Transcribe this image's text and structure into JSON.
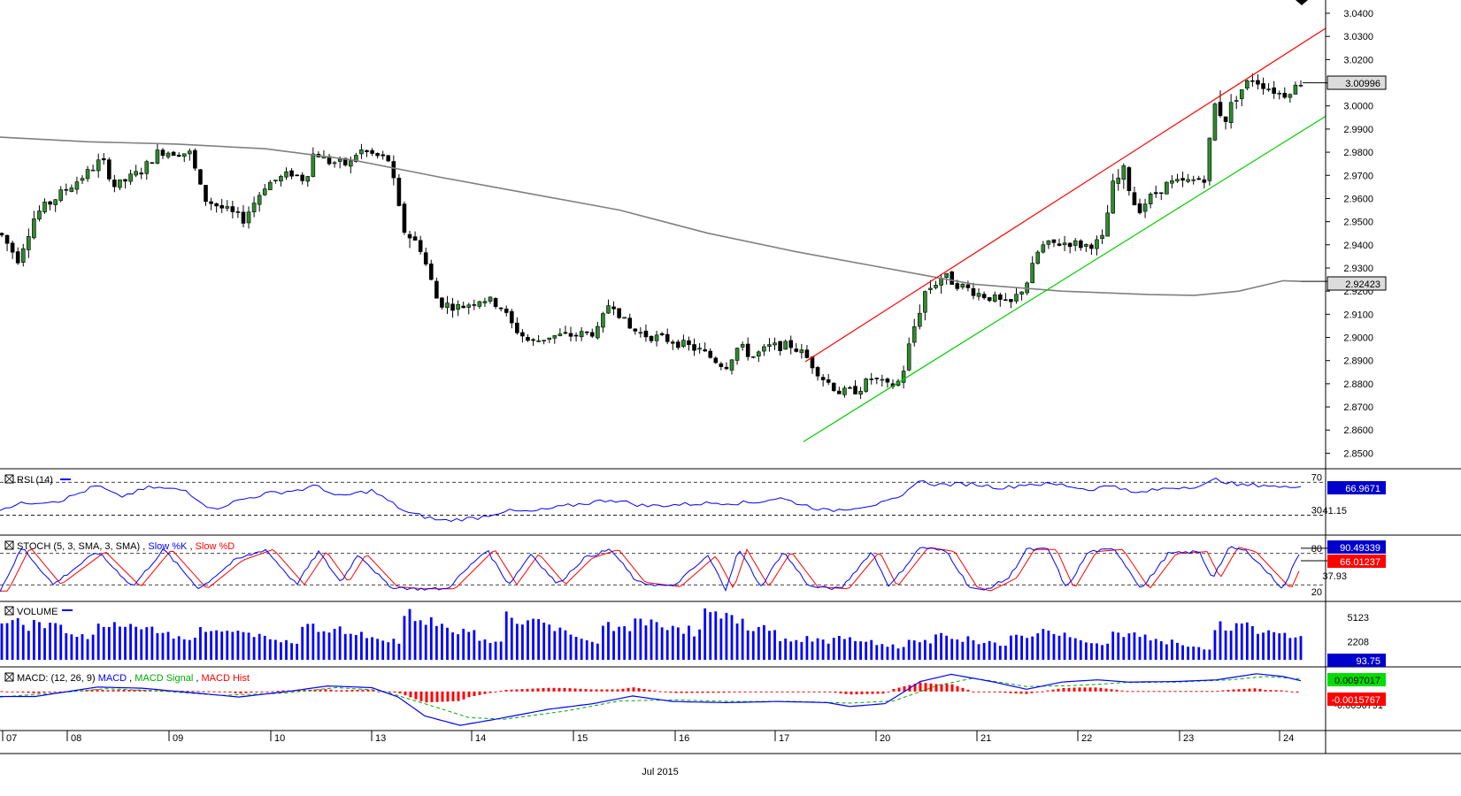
{
  "colors": {
    "bull": "#2e8b2e",
    "bear": "#000000",
    "ma": "#808080",
    "upper_channel": "#ff0000",
    "lower_channel": "#00cc00",
    "rsi": "#0000ff",
    "stoch_k": "#0000ff",
    "stoch_d": "#ff0000",
    "volume": "#0000ff",
    "macd": "#0000ff",
    "macd_signal": "#00aa00",
    "macd_hist": "#ff0000",
    "axis_text": "#000000"
  },
  "chart_data": {
    "type": "candlestick",
    "main": {
      "y_ticks": [
        "3.0400",
        "3.0300",
        "3.0200",
        "3.0100",
        "3.0000",
        "2.9900",
        "2.9800",
        "2.9700",
        "2.9600",
        "2.9500",
        "2.9400",
        "2.9300",
        "2.9200",
        "2.9100",
        "2.9000",
        "2.8900",
        "2.8800",
        "2.8700",
        "2.8600",
        "2.8500"
      ],
      "ylim": [
        2.845,
        3.0435
      ],
      "last_price": "3.00996",
      "ma_value": "2.92423",
      "moving_average": [
        [
          0,
          2.9865
        ],
        [
          100,
          2.9845
        ],
        [
          200,
          2.9835
        ],
        [
          300,
          2.9815
        ],
        [
          400,
          2.9765
        ],
        [
          500,
          2.969
        ],
        [
          600,
          2.962
        ],
        [
          700,
          2.955
        ],
        [
          800,
          2.945
        ],
        [
          900,
          2.937
        ],
        [
          1000,
          2.93
        ],
        [
          1100,
          2.923
        ],
        [
          1200,
          2.92
        ],
        [
          1300,
          2.9185
        ],
        [
          1350,
          2.9182
        ],
        [
          1400,
          2.92
        ],
        [
          1450,
          2.9245
        ],
        [
          1470,
          2.92423
        ]
      ],
      "upper_channel": [
        [
          910,
          2.8895
        ],
        [
          1498,
          3.0335
        ]
      ],
      "lower_channel": [
        [
          908,
          2.855
        ],
        [
          1498,
          2.9955
        ]
      ],
      "candle_count": 243,
      "close_path": [
        [
          0,
          2.945
        ],
        [
          20,
          2.934
        ],
        [
          40,
          2.953
        ],
        [
          70,
          2.9625
        ],
        [
          100,
          2.9715
        ],
        [
          115,
          2.977
        ],
        [
          130,
          2.965
        ],
        [
          160,
          2.972
        ],
        [
          180,
          2.9805
        ],
        [
          215,
          2.9795
        ],
        [
          230,
          2.96
        ],
        [
          250,
          2.956
        ],
        [
          275,
          2.951
        ],
        [
          300,
          2.966
        ],
        [
          330,
          2.971
        ],
        [
          345,
          2.968
        ],
        [
          355,
          2.9805
        ],
        [
          370,
          2.976
        ],
        [
          395,
          2.9745
        ],
        [
          405,
          2.981
        ],
        [
          440,
          2.9765
        ],
        [
          455,
          2.947
        ],
        [
          475,
          2.939
        ],
        [
          495,
          2.915
        ],
        [
          520,
          2.913
        ],
        [
          545,
          2.917
        ],
        [
          565,
          2.914
        ],
        [
          580,
          2.9045
        ],
        [
          600,
          2.8975
        ],
        [
          620,
          2.9005
        ],
        [
          650,
          2.901
        ],
        [
          675,
          2.9025
        ],
        [
          690,
          2.9165
        ],
        [
          710,
          2.904
        ],
        [
          730,
          2.901
        ],
        [
          760,
          2.8985
        ],
        [
          790,
          2.8945
        ],
        [
          820,
          2.8875
        ],
        [
          835,
          2.8965
        ],
        [
          850,
          2.8915
        ],
        [
          870,
          2.896
        ],
        [
          895,
          2.8965
        ],
        [
          910,
          2.892
        ],
        [
          930,
          2.8825
        ],
        [
          950,
          2.876
        ],
        [
          970,
          2.8775
        ],
        [
          985,
          2.8825
        ],
        [
          1005,
          2.8785
        ],
        [
          1018,
          2.8815
        ],
        [
          1030,
          2.9005
        ],
        [
          1045,
          2.9195
        ],
        [
          1065,
          2.9265
        ],
        [
          1085,
          2.9225
        ],
        [
          1105,
          2.919
        ],
        [
          1125,
          2.9165
        ],
        [
          1140,
          2.9135
        ],
        [
          1160,
          2.9235
        ],
        [
          1175,
          2.939
        ],
        [
          1190,
          2.9405
        ],
        [
          1210,
          2.941
        ],
        [
          1225,
          2.9395
        ],
        [
          1245,
          2.9415
        ],
        [
          1258,
          2.9655
        ],
        [
          1270,
          2.9715
        ],
        [
          1285,
          2.9545
        ],
        [
          1300,
          2.9605
        ],
        [
          1320,
          2.9665
        ],
        [
          1340,
          2.967
        ],
        [
          1362,
          2.969
        ],
        [
          1372,
          3.0005
        ],
        [
          1385,
          2.995
        ],
        [
          1398,
          3.005
        ],
        [
          1415,
          3.012
        ],
        [
          1430,
          3.0085
        ],
        [
          1450,
          3.0045
        ],
        [
          1470,
          3.00996
        ]
      ],
      "volatility_path": [
        [
          0,
          0.0055
        ],
        [
          100,
          0.0045
        ],
        [
          440,
          0.0045
        ],
        [
          460,
          0.0065
        ],
        [
          500,
          0.0045
        ],
        [
          1010,
          0.0045
        ],
        [
          1040,
          0.0065
        ],
        [
          1090,
          0.0045
        ],
        [
          1250,
          0.0045
        ],
        [
          1260,
          0.0075
        ],
        [
          1290,
          0.0045
        ],
        [
          1362,
          0.0045
        ],
        [
          1372,
          0.0085
        ],
        [
          1400,
          0.0055
        ],
        [
          1470,
          0.0035
        ]
      ]
    },
    "rsi": {
      "label": "RSI (14)",
      "levels": [
        "70",
        "30"
      ],
      "level_values": [
        70,
        30
      ],
      "value": "66.9671",
      "mid_label": "41.15",
      "ylim": [
        10,
        80
      ],
      "path": [
        [
          0,
          38
        ],
        [
          30,
          45
        ],
        [
          70,
          48
        ],
        [
          110,
          66
        ],
        [
          135,
          52
        ],
        [
          170,
          64
        ],
        [
          210,
          60
        ],
        [
          240,
          37
        ],
        [
          270,
          48
        ],
        [
          300,
          56
        ],
        [
          340,
          61
        ],
        [
          360,
          66
        ],
        [
          380,
          52
        ],
        [
          420,
          60
        ],
        [
          460,
          33
        ],
        [
          500,
          23
        ],
        [
          540,
          27
        ],
        [
          570,
          35
        ],
        [
          600,
          34
        ],
        [
          640,
          41
        ],
        [
          690,
          49
        ],
        [
          730,
          41
        ],
        [
          770,
          43
        ],
        [
          810,
          45
        ],
        [
          850,
          45
        ],
        [
          880,
          51
        ],
        [
          910,
          42
        ],
        [
          935,
          35
        ],
        [
          970,
          40
        ],
        [
          1000,
          45
        ],
        [
          1020,
          52
        ],
        [
          1035,
          72
        ],
        [
          1060,
          67
        ],
        [
          1100,
          68
        ],
        [
          1135,
          63
        ],
        [
          1160,
          68
        ],
        [
          1200,
          67
        ],
        [
          1230,
          61
        ],
        [
          1260,
          67
        ],
        [
          1280,
          56
        ],
        [
          1320,
          63
        ],
        [
          1360,
          66
        ],
        [
          1375,
          74
        ],
        [
          1400,
          66
        ],
        [
          1430,
          67
        ],
        [
          1450,
          63
        ],
        [
          1470,
          67
        ]
      ],
      "noise": 5
    },
    "stoch": {
      "label_prefix": "STOCH (5, 3, SMA, 3, SMA)",
      "k_label": "Slow %K",
      "d_label": "Slow %D",
      "levels": [
        "80",
        "20"
      ],
      "level_values": [
        80,
        20
      ],
      "k_value": "90.49339",
      "d_value": "66.01237",
      "mid_label": "37.93",
      "ylim": [
        -5,
        105
      ],
      "cycles": [
        [
          0,
          0
        ],
        [
          25,
          1
        ],
        [
          60,
          0.15
        ],
        [
          110,
          0.9
        ],
        [
          150,
          0.1
        ],
        [
          185,
          0.95
        ],
        [
          225,
          0.05
        ],
        [
          265,
          0.7
        ],
        [
          300,
          0.95
        ],
        [
          335,
          0.15
        ],
        [
          360,
          0.9
        ],
        [
          385,
          0.2
        ],
        [
          405,
          0.85
        ],
        [
          440,
          0.1
        ],
        [
          470,
          0.05
        ],
        [
          505,
          0.05
        ],
        [
          550,
          0.95
        ],
        [
          575,
          0.15
        ],
        [
          600,
          0.85
        ],
        [
          630,
          0.15
        ],
        [
          660,
          0.75
        ],
        [
          690,
          0.95
        ],
        [
          720,
          0.2
        ],
        [
          760,
          0.1
        ],
        [
          800,
          0.8
        ],
        [
          820,
          0.05
        ],
        [
          835,
          0.95
        ],
        [
          860,
          0.1
        ],
        [
          885,
          0.9
        ],
        [
          915,
          0.1
        ],
        [
          950,
          0.05
        ],
        [
          985,
          0.9
        ],
        [
          1005,
          0.1
        ],
        [
          1040,
          1
        ],
        [
          1070,
          0.9
        ],
        [
          1095,
          0.1
        ],
        [
          1110,
          0.0
        ],
        [
          1140,
          0.3
        ],
        [
          1160,
          0.95
        ],
        [
          1185,
          0.95
        ],
        [
          1205,
          0.05
        ],
        [
          1230,
          0.9
        ],
        [
          1260,
          0.95
        ],
        [
          1290,
          0.05
        ],
        [
          1320,
          0.85
        ],
        [
          1355,
          0.9
        ],
        [
          1370,
          0.3
        ],
        [
          1390,
          1
        ],
        [
          1410,
          0.9
        ],
        [
          1450,
          0.05
        ],
        [
          1470,
          0.95
        ]
      ]
    },
    "volume": {
      "label": "VOLUME",
      "ticks": [
        "5123",
        "2208"
      ],
      "tick_values": [
        5123,
        2208
      ],
      "value": "93.75",
      "ylim": [
        0,
        6600
      ],
      "clusters": [
        [
          0,
          5500
        ],
        [
          35,
          5000
        ],
        [
          110,
          5400
        ],
        [
          145,
          4600
        ],
        [
          225,
          4400
        ],
        [
          255,
          3800
        ],
        [
          340,
          5000
        ],
        [
          375,
          4000
        ],
        [
          455,
          6100
        ],
        [
          490,
          3800
        ],
        [
          570,
          5900
        ],
        [
          600,
          3700
        ],
        [
          680,
          4800
        ],
        [
          715,
          5900
        ],
        [
          795,
          6300
        ],
        [
          830,
          3900
        ],
        [
          910,
          3000
        ],
        [
          940,
          3000
        ],
        [
          1025,
          2700
        ],
        [
          1055,
          3400
        ],
        [
          1140,
          3400
        ],
        [
          1170,
          3800
        ],
        [
          1255,
          3700
        ],
        [
          1290,
          2400
        ],
        [
          1370,
          4700
        ],
        [
          1395,
          4700
        ],
        [
          1410,
          2400
        ]
      ],
      "cluster_len": 14,
      "base": 300
    },
    "macd": {
      "label_prefix": "MACD: (12, 26, 9)",
      "macd_label": "MACD",
      "signal_label": "MACD Signal",
      "hist_label": "MACD Hist",
      "macd_value": "0.0097017",
      "hist_value": "-0.0015767",
      "partial_label": "-0.0056791",
      "ylim": [
        -0.032,
        0.019
      ],
      "macd_path": [
        [
          0,
          -0.0045
        ],
        [
          40,
          -0.0045
        ],
        [
          110,
          0.004
        ],
        [
          160,
          0.003
        ],
        [
          230,
          -0.002
        ],
        [
          270,
          -0.005
        ],
        [
          330,
          0.0005
        ],
        [
          370,
          0.005
        ],
        [
          420,
          0.0035
        ],
        [
          450,
          -0.005
        ],
        [
          480,
          -0.022
        ],
        [
          520,
          -0.0305
        ],
        [
          560,
          -0.025
        ],
        [
          620,
          -0.016
        ],
        [
          670,
          -0.011
        ],
        [
          715,
          -0.004
        ],
        [
          760,
          -0.009
        ],
        [
          820,
          -0.01
        ],
        [
          880,
          -0.009
        ],
        [
          935,
          -0.01
        ],
        [
          960,
          -0.0135
        ],
        [
          1000,
          -0.011
        ],
        [
          1040,
          0.009
        ],
        [
          1075,
          0.0155
        ],
        [
          1120,
          0.009
        ],
        [
          1160,
          0.002
        ],
        [
          1200,
          0.0085
        ],
        [
          1240,
          0.0105
        ],
        [
          1275,
          0.0085
        ],
        [
          1330,
          0.009
        ],
        [
          1375,
          0.0105
        ],
        [
          1420,
          0.016
        ],
        [
          1450,
          0.0135
        ],
        [
          1470,
          0.0097
        ]
      ],
      "signal_path": [
        [
          0,
          -0.005
        ],
        [
          60,
          -0.0015
        ],
        [
          120,
          0.0025
        ],
        [
          180,
          0.0005
        ],
        [
          250,
          -0.0035
        ],
        [
          320,
          -0.0015
        ],
        [
          380,
          0.0035
        ],
        [
          430,
          0.001
        ],
        [
          480,
          -0.011
        ],
        [
          530,
          -0.0235
        ],
        [
          570,
          -0.025
        ],
        [
          640,
          -0.0175
        ],
        [
          700,
          -0.0085
        ],
        [
          760,
          -0.0075
        ],
        [
          830,
          -0.009
        ],
        [
          900,
          -0.009
        ],
        [
          960,
          -0.0105
        ],
        [
          1010,
          -0.0085
        ],
        [
          1060,
          0.0055
        ],
        [
          1100,
          0.012
        ],
        [
          1160,
          0.0045
        ],
        [
          1220,
          0.0055
        ],
        [
          1270,
          0.008
        ],
        [
          1330,
          0.0085
        ],
        [
          1390,
          0.0105
        ],
        [
          1430,
          0.0135
        ],
        [
          1470,
          0.0113
        ]
      ]
    },
    "x_axis": {
      "labels": [
        {
          "text": "07",
          "x": 7
        },
        {
          "text": "08",
          "x": 80
        },
        {
          "text": "09",
          "x": 195
        },
        {
          "text": "10",
          "x": 310
        },
        {
          "text": "13",
          "x": 424
        },
        {
          "text": "14",
          "x": 537
        },
        {
          "text": "15",
          "x": 652
        },
        {
          "text": "16",
          "x": 767
        },
        {
          "text": "17",
          "x": 880
        },
        {
          "text": "20",
          "x": 994
        },
        {
          "text": "21",
          "x": 1108
        },
        {
          "text": "22",
          "x": 1222
        },
        {
          "text": "23",
          "x": 1337
        },
        {
          "text": "24",
          "x": 1450
        }
      ],
      "month_label": "Jul 2015",
      "month_x": 748
    }
  }
}
